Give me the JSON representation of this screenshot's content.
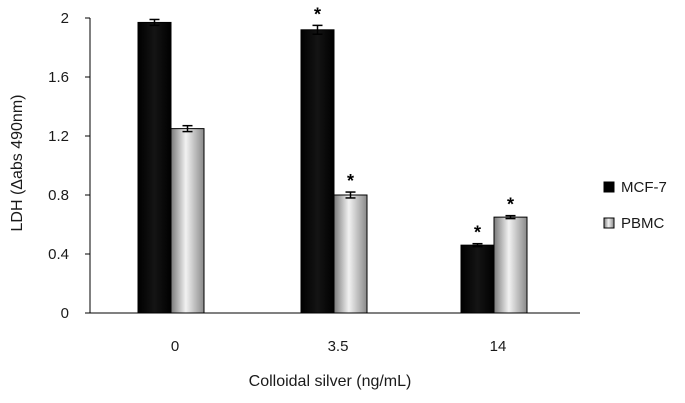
{
  "chart_data": {
    "type": "bar",
    "title": "",
    "xlabel": "Colloidal silver (ng/mL)",
    "ylabel": "LDH (Δabs 490nm)",
    "ylim": [
      0,
      2
    ],
    "yticks": [
      "0",
      "0.4",
      "0.8",
      "1.2",
      "1.6",
      "2"
    ],
    "categories": [
      "0",
      "3.5",
      "14"
    ],
    "series": [
      {
        "name": "MCF-7",
        "values": [
          1.97,
          1.92,
          0.46
        ],
        "errors": [
          0.02,
          0.03,
          0.01
        ],
        "significance": [
          "",
          "*",
          "*"
        ],
        "color": "#000000"
      },
      {
        "name": "PBMC",
        "values": [
          1.25,
          0.8,
          0.65
        ],
        "errors": [
          0.02,
          0.02,
          0.01
        ],
        "significance": [
          "",
          "*",
          "*"
        ],
        "color": "#c8c8c8"
      }
    ],
    "legend_position": "right",
    "grid": false
  }
}
